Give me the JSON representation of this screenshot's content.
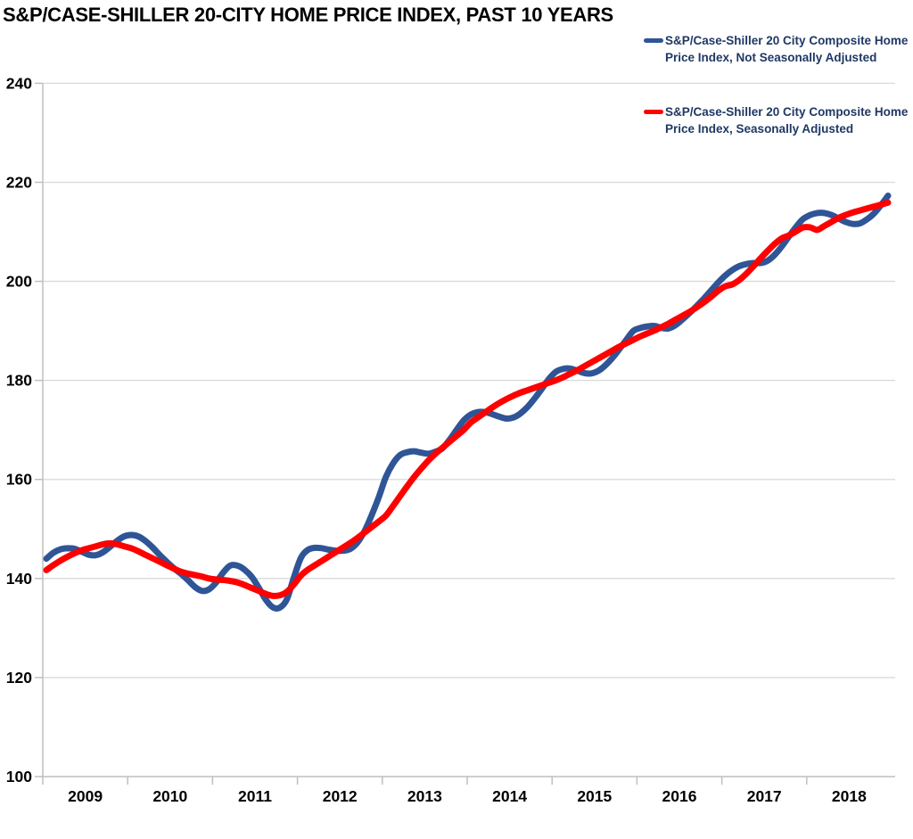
{
  "title": "S&P/CASE-SHILLER 20-CITY HOME PRICE INDEX, PAST 10 YEARS",
  "legend": [
    {
      "label_line1": "S&P/Case-Shiller 20 City Composite Home",
      "label_line2": "Price Index, Not Seasonally Adjusted",
      "color": "#2F5597"
    },
    {
      "label_line1": "S&P/Case-Shiller 20 City Composite Home",
      "label_line2": "Price Index, Seasonally Adjusted",
      "color": "#FF0000"
    }
  ],
  "colors": {
    "nsa_line": "#2F5597",
    "sa_line": "#FF0000",
    "legend_text": "#1F3864",
    "axis_labels": "#000000",
    "gridline": "#D9D9D9",
    "axis_line": "#BFBFBF"
  },
  "chart_data": {
    "type": "line",
    "title": "S&P/CASE-SHILLER 20-CITY HOME PRICE INDEX, PAST 10 YEARS",
    "x_unit": "monthly, Jan 2009 - Dec 2018",
    "x_tick_labels": [
      "2009",
      "2010",
      "2011",
      "2012",
      "2013",
      "2014",
      "2015",
      "2016",
      "2017",
      "2018"
    ],
    "y_tick_labels": [
      "240",
      "220",
      "200",
      "180",
      "160",
      "140",
      "120",
      "100"
    ],
    "ylim": [
      100,
      240
    ],
    "y_tick_step": 20,
    "grid": true,
    "legend_position": "top-right",
    "series": [
      {
        "name": "S&P/Case-Shiller 20 City Composite Home Price Index, Not Seasonally Adjusted",
        "color": "#2F5597",
        "values": [
          144.0,
          145.2,
          145.9,
          146.1,
          146.0,
          145.4,
          144.8,
          144.7,
          145.3,
          146.4,
          147.6,
          148.5,
          148.8,
          148.5,
          147.6,
          146.3,
          144.8,
          143.4,
          142.1,
          141.0,
          139.7,
          138.3,
          137.5,
          137.8,
          139.2,
          141.2,
          142.6,
          142.6,
          141.8,
          140.4,
          138.2,
          135.8,
          134.2,
          134.1,
          135.8,
          140.2,
          144.2,
          145.8,
          146.2,
          146.1,
          145.8,
          145.6,
          145.6,
          146.0,
          147.3,
          149.6,
          152.8,
          156.4,
          160.5,
          163.2,
          164.9,
          165.5,
          165.7,
          165.4,
          165.2,
          165.6,
          166.3,
          168.0,
          170.0,
          171.9,
          173.1,
          173.6,
          173.6,
          173.2,
          172.7,
          172.3,
          172.5,
          173.3,
          174.6,
          176.3,
          178.2,
          180.2,
          181.7,
          182.3,
          182.4,
          182.0,
          181.5,
          181.4,
          181.9,
          183.0,
          184.5,
          186.3,
          188.2,
          190.0,
          190.6,
          190.9,
          191.0,
          190.6,
          190.5,
          191.2,
          192.4,
          193.7,
          195.1,
          196.6,
          198.2,
          199.8,
          201.2,
          202.3,
          203.1,
          203.5,
          203.7,
          203.7,
          204.2,
          205.4,
          207.1,
          209.1,
          211.0,
          212.6,
          213.4,
          213.8,
          213.8,
          213.4,
          212.7,
          212.0,
          211.6,
          211.7,
          212.5,
          213.7,
          215.4,
          217.3
        ]
      },
      {
        "name": "S&P/Case-Shiller 20 City Composite Home Price Index, Seasonally Adjusted",
        "color": "#FF0000",
        "values": [
          141.7,
          142.7,
          143.6,
          144.4,
          145.1,
          145.7,
          146.1,
          146.5,
          146.9,
          147.1,
          146.9,
          146.5,
          146.1,
          145.5,
          144.8,
          144.1,
          143.4,
          142.7,
          142.0,
          141.4,
          141.0,
          140.7,
          140.4,
          140.0,
          139.8,
          139.7,
          139.5,
          139.2,
          138.7,
          138.1,
          137.5,
          136.9,
          136.5,
          136.6,
          137.3,
          138.8,
          140.6,
          141.8,
          142.7,
          143.6,
          144.5,
          145.4,
          146.3,
          147.2,
          148.2,
          149.3,
          150.4,
          151.5,
          152.7,
          154.6,
          156.6,
          158.6,
          160.5,
          162.2,
          163.8,
          165.2,
          166.4,
          167.6,
          168.8,
          170.0,
          171.5,
          172.5,
          173.5,
          174.5,
          175.4,
          176.2,
          176.9,
          177.5,
          178.0,
          178.5,
          179.0,
          179.5,
          180.0,
          180.6,
          181.3,
          182.0,
          182.8,
          183.6,
          184.4,
          185.2,
          186.0,
          186.8,
          187.5,
          188.2,
          188.9,
          189.5,
          190.1,
          190.8,
          191.5,
          192.3,
          193.1,
          193.9,
          194.8,
          195.8,
          196.9,
          198.1,
          199.0,
          199.4,
          200.3,
          201.6,
          203.1,
          204.7,
          206.2,
          207.6,
          208.7,
          209.3,
          210.1,
          210.9,
          210.9,
          210.4,
          211.2,
          212.0,
          212.8,
          213.4,
          213.9,
          214.3,
          214.7,
          215.1,
          215.5,
          215.9
        ]
      }
    ]
  }
}
